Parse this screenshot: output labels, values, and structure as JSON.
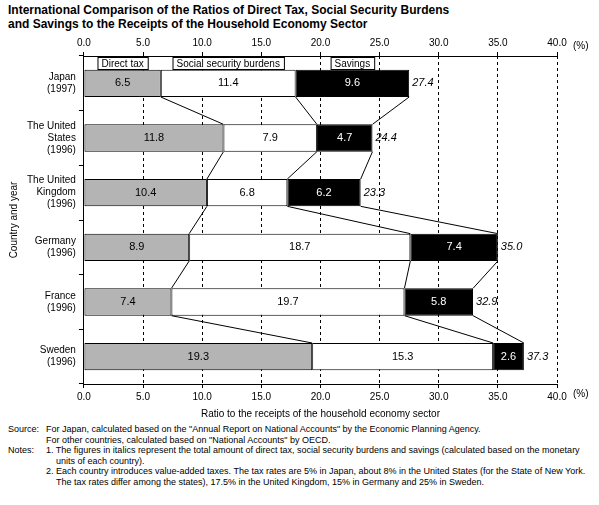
{
  "chart_data": {
    "type": "bar",
    "title": "International Comparison of the Ratios of Direct Tax, Social Security Burdens\nand Savings to the Receipts of the Household Economy Sector",
    "xlabel": "Ratio to the receipts of the household economy sector",
    "ylabel": "Country and year",
    "x_unit_label": "(%)",
    "orientation": "horizontal",
    "stacked": true,
    "data_labels": true,
    "grid": true,
    "categories": [
      "Japan\n(1997)",
      "The United\nStates\n(1996)",
      "The United\nKingdom\n(1996)",
      "Germany\n(1996)",
      "France\n(1996)",
      "Sweden\n(1996)"
    ],
    "series": [
      {
        "name": "Direct tax",
        "color": "#b4b4b4",
        "values": [
          6.5,
          11.8,
          10.4,
          8.9,
          7.4,
          19.3
        ]
      },
      {
        "name": "Social security burdens",
        "color": "#ffffff",
        "values": [
          11.4,
          7.9,
          6.8,
          18.7,
          19.7,
          15.3
        ]
      },
      {
        "name": "Savings",
        "color": "#000000",
        "values": [
          9.6,
          4.7,
          6.2,
          7.4,
          5.8,
          2.6
        ]
      }
    ],
    "totals": {
      "values": [
        27.4,
        24.4,
        23.3,
        35.0,
        32.9,
        37.3
      ],
      "value_labels": [
        "27.4",
        "24.4",
        "23.3",
        "35.0",
        "32.9",
        "37.3"
      ]
    },
    "xlim": [
      0,
      40
    ],
    "xticks": [
      {
        "value": 0,
        "label": "0.0"
      },
      {
        "value": 5,
        "label": "5.0"
      },
      {
        "value": 10,
        "label": "10.0"
      },
      {
        "value": 15,
        "label": "15.0"
      },
      {
        "value": 20,
        "label": "20.0"
      },
      {
        "value": 25,
        "label": "25.0"
      },
      {
        "value": 30,
        "label": "30.0"
      },
      {
        "value": 35,
        "label": "35.0"
      },
      {
        "value": 40,
        "label": "40.0"
      }
    ],
    "source": {
      "label": "Source:",
      "lines": [
        "For Japan, calculated based on the \"Annual Report on National Accounts\" by the Economic Planning Agency.",
        "For other countries, calculated based on \"National Accounts\" by OECD."
      ]
    },
    "notes": {
      "label": "Notes:",
      "items": [
        "1. The figures in italics represent the total amount of direct tax, social security burdens and savings (calculated based on the monetary units of each country).",
        "2. Each country introduces value-added taxes. The tax rates are 5% in Japan, about 8% in the United States (for the State of New York. The tax rates differ among the states), 17.5% in the United Kingdom, 15% in Germany and 25% in Sweden."
      ]
    }
  }
}
